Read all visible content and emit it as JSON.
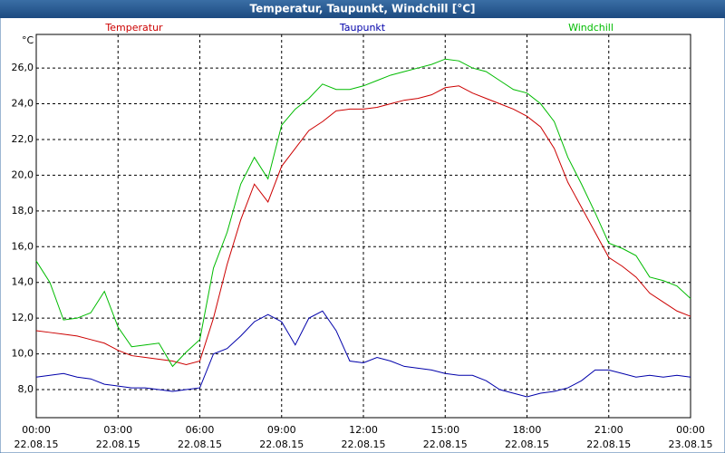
{
  "chart_data": {
    "type": "line",
    "title": "Temperatur, Taupunkt, Windchill [°C]",
    "y_label": "°C",
    "x": [
      0,
      0.5,
      1,
      1.5,
      2,
      2.5,
      3,
      3.5,
      4,
      4.5,
      5,
      5.5,
      6,
      6.5,
      7,
      7.5,
      8,
      8.5,
      9,
      9.5,
      10,
      10.5,
      11,
      11.5,
      12,
      12.5,
      13,
      13.5,
      14,
      14.5,
      15,
      15.5,
      16,
      16.5,
      17,
      17.5,
      18,
      18.5,
      19,
      19.5,
      20,
      20.5,
      21,
      21.5,
      22,
      22.5,
      23,
      23.5,
      24
    ],
    "series": [
      {
        "name": "Temperatur",
        "color": "#cc0000",
        "values": [
          11.3,
          11.2,
          11.1,
          11.0,
          10.8,
          10.6,
          10.2,
          9.9,
          9.8,
          9.7,
          9.6,
          9.4,
          9.6,
          12.0,
          15.0,
          17.5,
          19.5,
          18.5,
          20.5,
          21.5,
          22.5,
          23.0,
          23.6,
          23.7,
          23.7,
          23.8,
          24.0,
          24.2,
          24.3,
          24.5,
          24.9,
          25.0,
          24.6,
          24.3,
          24.0,
          23.7,
          23.3,
          22.7,
          21.5,
          19.6,
          18.2,
          16.8,
          15.4,
          14.9,
          14.3,
          13.4,
          12.9,
          12.4,
          12.1
        ]
      },
      {
        "name": "Taupunkt",
        "color": "#0000aa",
        "values": [
          8.7,
          8.8,
          8.9,
          8.7,
          8.6,
          8.3,
          8.2,
          8.1,
          8.1,
          8.0,
          7.9,
          8.0,
          8.1,
          10.0,
          10.3,
          11.0,
          11.8,
          12.2,
          11.8,
          10.5,
          12.0,
          12.4,
          11.3,
          9.6,
          9.5,
          9.8,
          9.6,
          9.3,
          9.2,
          9.1,
          8.9,
          8.8,
          8.8,
          8.5,
          8.0,
          7.8,
          7.6,
          7.8,
          7.9,
          8.1,
          8.5,
          9.1,
          9.1,
          8.9,
          8.7,
          8.8,
          8.7,
          8.8,
          8.7
        ]
      },
      {
        "name": "Windchill",
        "color": "#00bb00",
        "values": [
          15.2,
          14.0,
          11.9,
          12.0,
          12.3,
          13.5,
          11.5,
          10.4,
          10.5,
          10.6,
          9.3,
          10.1,
          10.8,
          14.8,
          16.8,
          19.5,
          21.0,
          19.8,
          22.8,
          23.7,
          24.3,
          25.1,
          24.8,
          24.8,
          25.0,
          25.3,
          25.6,
          25.8,
          26.0,
          26.2,
          26.5,
          26.4,
          26.0,
          25.8,
          25.3,
          24.8,
          24.6,
          24.0,
          23.0,
          21.0,
          19.5,
          17.9,
          16.2,
          15.9,
          15.5,
          14.3,
          14.1,
          13.8,
          13.1
        ]
      }
    ],
    "xlim": [
      0,
      24
    ],
    "xticks": [
      {
        "value": 0,
        "label": "00:00\n22.08.15"
      },
      {
        "value": 3,
        "label": "03:00\n22.08.15"
      },
      {
        "value": 6,
        "label": "06:00\n22.08.15"
      },
      {
        "value": 9,
        "label": "09:00\n22.08.15"
      },
      {
        "value": 12,
        "label": "12:00\n22.08.15"
      },
      {
        "value": 15,
        "label": "15:00\n22.08.15"
      },
      {
        "value": 18,
        "label": "18:00\n22.08.15"
      },
      {
        "value": 21,
        "label": "21:00\n22.08.15"
      },
      {
        "value": 24,
        "label": "00:00\n23.08.15"
      }
    ],
    "ylim": [
      6.43,
      27.88
    ],
    "yticks": [
      {
        "value": 8,
        "label": "8,0"
      },
      {
        "value": 10,
        "label": "10,0"
      },
      {
        "value": 12,
        "label": "12,0"
      },
      {
        "value": 14,
        "label": "14,0"
      },
      {
        "value": 16,
        "label": "16,0"
      },
      {
        "value": 18,
        "label": "18,0"
      },
      {
        "value": 20,
        "label": "20,0"
      },
      {
        "value": 22,
        "label": "22,0"
      },
      {
        "value": 24,
        "label": "24,0"
      },
      {
        "value": 26,
        "label": "26,0"
      }
    ],
    "grid": true
  }
}
